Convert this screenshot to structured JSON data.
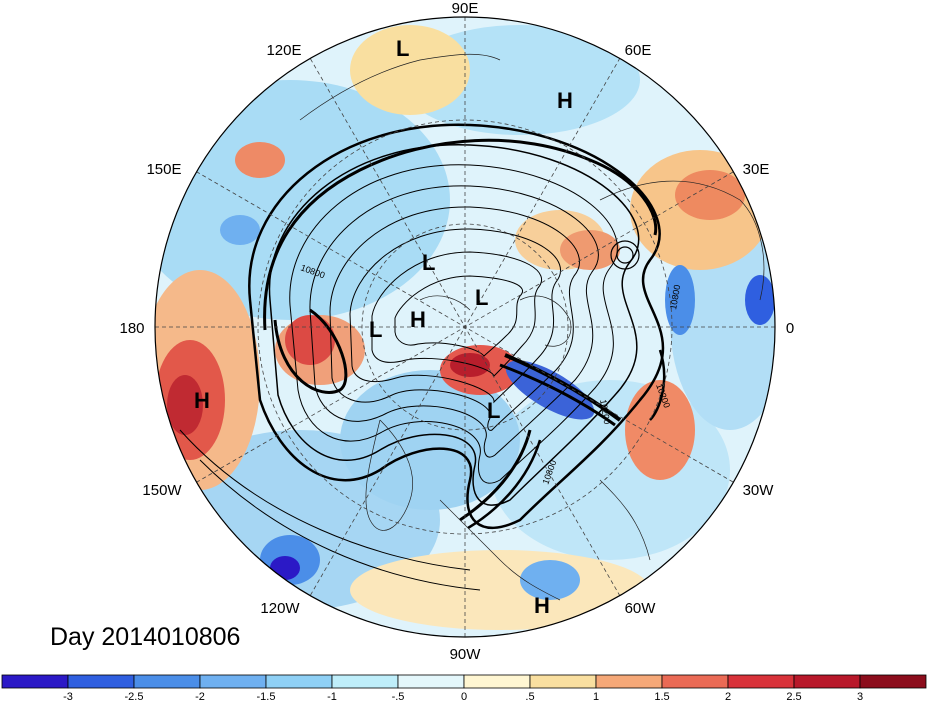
{
  "date_label": "Day 2014010806",
  "longitude_labels": {
    "lon_90E": "90E",
    "lon_60E": "60E",
    "lon_30E": "30E",
    "lon_0": "0",
    "lon_30W": "30W",
    "lon_60W": "60W",
    "lon_90W": "90W",
    "lon_120W": "120W",
    "lon_150W": "150W",
    "lon_180": "180",
    "lon_150E": "150E",
    "lon_120E": "120E"
  },
  "pressure_centers": [
    {
      "type": "L"
    },
    {
      "type": "H"
    },
    {
      "type": "L"
    },
    {
      "type": "L"
    },
    {
      "type": "L"
    },
    {
      "type": "H"
    },
    {
      "type": "L"
    },
    {
      "type": "H"
    },
    {
      "type": "H"
    }
  ],
  "contour_labels": [
    "10800",
    "10200",
    "10800",
    "10200",
    "10800"
  ],
  "colorbar": {
    "ticks": [
      "-3",
      "-2.5",
      "-2",
      "-1.5",
      "-1",
      "-.5",
      "0",
      ".5",
      "1",
      "1.5",
      "2",
      "2.5",
      "3"
    ],
    "colors": [
      "#2b19c6",
      "#2f5fe0",
      "#4b8ee8",
      "#6fb0f0",
      "#8fd0f5",
      "#bfeefa",
      "#e4f7fb",
      "#fff6d2",
      "#f9dfa0",
      "#f5a878",
      "#ea6a55",
      "#d8323a",
      "#b8182a",
      "#8c0d1c"
    ]
  }
}
